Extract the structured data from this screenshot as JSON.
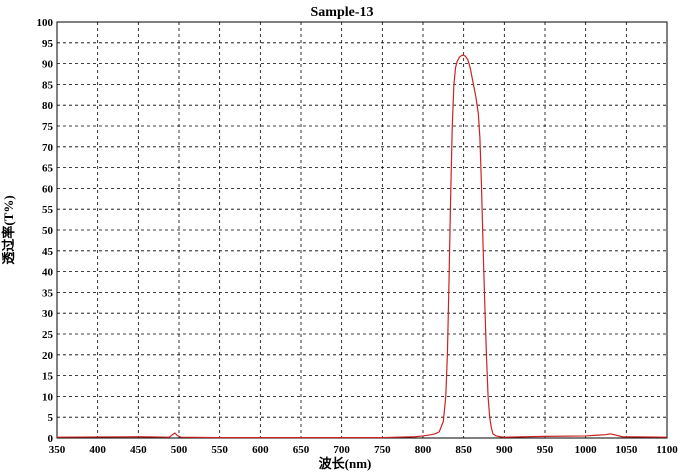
{
  "chart_data": {
    "type": "line",
    "title": "Sample-13",
    "xlabel": "波长(nm)",
    "ylabel": "透过率(T%)",
    "xlim": [
      350,
      1100
    ],
    "ylim": [
      0,
      100
    ],
    "grid": true,
    "x_ticks": [
      350,
      400,
      450,
      500,
      550,
      600,
      650,
      700,
      750,
      800,
      850,
      900,
      950,
      1000,
      1050,
      1100
    ],
    "y_ticks": [
      0,
      5,
      10,
      15,
      20,
      25,
      30,
      35,
      40,
      45,
      50,
      55,
      60,
      65,
      70,
      75,
      80,
      85,
      90,
      95,
      100
    ],
    "series": [
      {
        "color": "#cc2222",
        "x": [
          350,
          450,
          488,
          492,
          495,
          498,
          502,
          550,
          650,
          750,
          790,
          800,
          810,
          815,
          820,
          825,
          828,
          830,
          832,
          834,
          836,
          838,
          840,
          842,
          845,
          848,
          850,
          852,
          855,
          858,
          860,
          862,
          865,
          868,
          870,
          872,
          874,
          876,
          878,
          880,
          882,
          884,
          886,
          890,
          895,
          900,
          950,
          1000,
          1015,
          1025,
          1030,
          1035,
          1045,
          1100
        ],
        "y": [
          0.2,
          0.3,
          0.2,
          0.8,
          1.2,
          0.6,
          0.2,
          0.1,
          0.1,
          0.1,
          0.3,
          0.5,
          0.8,
          1.0,
          1.5,
          4.0,
          10,
          20,
          38,
          58,
          75,
          85,
          89,
          90.5,
          91.6,
          92,
          92,
          91.8,
          91,
          89,
          87,
          85,
          82,
          78,
          72,
          60,
          45,
          32,
          20,
          10,
          5,
          2.5,
          1.0,
          0.5,
          0.3,
          0.2,
          0.4,
          0.5,
          0.7,
          0.8,
          1.0,
          0.8,
          0.3,
          0.2
        ]
      }
    ]
  }
}
